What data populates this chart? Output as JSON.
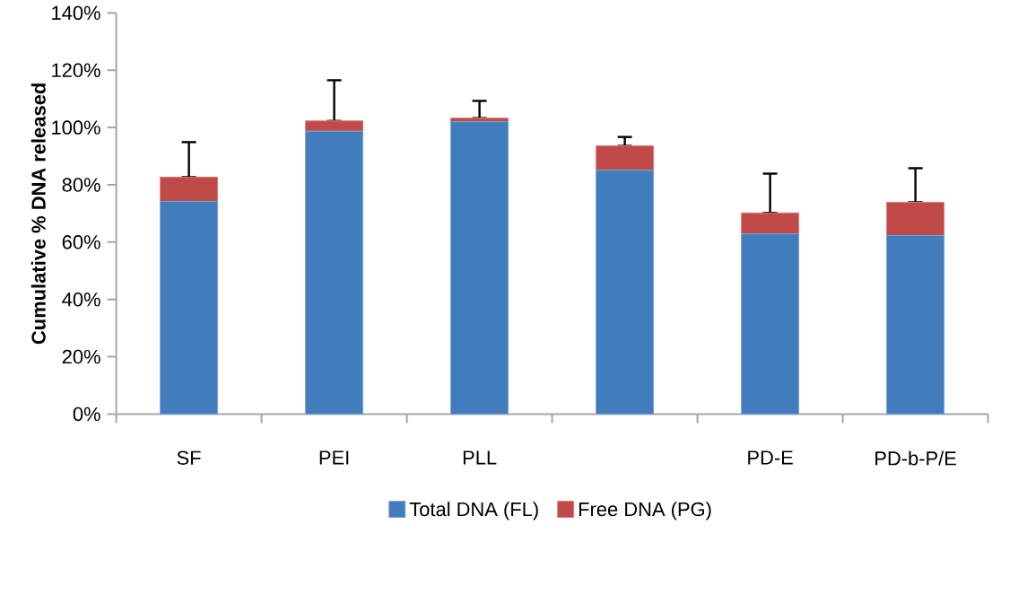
{
  "chart_data": {
    "type": "bar",
    "stacked": true,
    "ylabel": "Cumulative % DNA released",
    "categories": [
      "SF",
      "PEI",
      "PLL",
      null,
      "PD-E",
      "PD-b-P/E"
    ],
    "series": [
      {
        "name": "Total DNA (FL)",
        "color": "#417cbd",
        "values": [
          74.2,
          98.7,
          102.0,
          85.1,
          62.9,
          62.3
        ]
      },
      {
        "name": "Free DNA (PG)",
        "color": "#c04a48",
        "values": [
          8.5,
          3.6,
          1.3,
          8.5,
          7.3,
          11.6
        ],
        "errors": [
          [
            82.7,
            94.9
          ],
          [
            102.3,
            116.5
          ],
          [
            103.3,
            109.3
          ],
          [
            93.6,
            96.7
          ],
          [
            70.2,
            83.9
          ],
          [
            73.9,
            85.8
          ]
        ]
      }
    ],
    "ylim": [
      0,
      140
    ],
    "yticks": [
      {
        "value": 0,
        "label": "0%"
      },
      {
        "value": 20,
        "label": "20%"
      },
      {
        "value": 40,
        "label": "40%"
      },
      {
        "value": 60,
        "label": "60%"
      },
      {
        "value": 80,
        "label": "80%"
      },
      {
        "value": 100,
        "label": "100%"
      },
      {
        "value": 120,
        "label": "120%"
      },
      {
        "value": 140,
        "label": "140%"
      }
    ],
    "grid": false,
    "legend": "bottom"
  }
}
